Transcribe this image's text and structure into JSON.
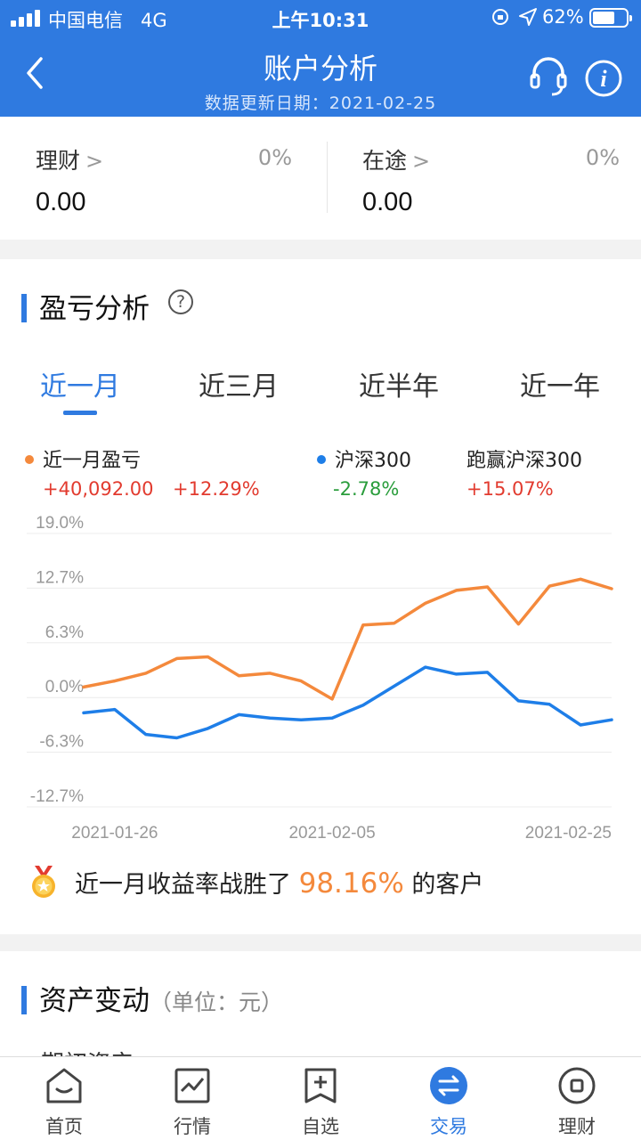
{
  "status_bar": {
    "carrier": "中国电信",
    "network": "4G",
    "time": "上午10:31",
    "battery": "62%"
  },
  "header": {
    "title": "账户分析",
    "subtitle": "数据更新日期：2021-02-25"
  },
  "accounts": [
    {
      "name": "理财",
      "percent": "0%",
      "value": "0.00"
    },
    {
      "name": "在途",
      "percent": "0%",
      "value": "0.00"
    }
  ],
  "pl_section": {
    "title": "盈亏分析",
    "tabs": [
      "近一月",
      "近三月",
      "近半年",
      "近一年"
    ],
    "active_tab": 0,
    "legend": {
      "series_a": {
        "label": "近一月盈亏",
        "amount": "+40,092.00",
        "percent": "+12.29%",
        "color": "#f4893c"
      },
      "series_b": {
        "label": "沪深300",
        "percent": "-2.78%",
        "color": "#1e7ee8"
      },
      "beat": {
        "label": "跑赢沪深300",
        "percent": "+15.07%"
      }
    },
    "beat_text": {
      "prefix": "近一月收益率战胜了",
      "value": "98.16%",
      "suffix": "的客户"
    }
  },
  "chart_data": {
    "type": "line",
    "y_ticks": [
      "19.0%",
      "12.7%",
      "6.3%",
      "0.0%",
      "-6.3%",
      "-12.7%"
    ],
    "ylim": [
      -12.7,
      19.0
    ],
    "x_tick_labels": [
      "2021-01-26",
      "2021-02-05",
      "2021-02-25"
    ],
    "x_tick_index": [
      1,
      8,
      17
    ],
    "series": [
      {
        "name": "近一月盈亏",
        "color": "#f4893c",
        "values": [
          1.2,
          1.9,
          2.8,
          4.5,
          4.7,
          2.5,
          2.8,
          1.9,
          -0.2,
          8.4,
          8.6,
          10.9,
          12.4,
          12.8,
          8.5,
          12.9,
          13.7,
          12.6
        ]
      },
      {
        "name": "沪深300",
        "color": "#1e7ee8",
        "values": [
          -1.8,
          -1.4,
          -4.3,
          -4.7,
          -3.6,
          -2.0,
          -2.4,
          -2.6,
          -2.4,
          -0.9,
          1.3,
          3.5,
          2.7,
          2.9,
          -0.4,
          -0.8,
          -3.2,
          -2.6
        ]
      }
    ]
  },
  "asset_section": {
    "title": "资产变动",
    "unit": "（单位：元）",
    "cut_label": "期初资产"
  },
  "tabbar": [
    {
      "label": "首页"
    },
    {
      "label": "行情"
    },
    {
      "label": "自选"
    },
    {
      "label": "交易"
    },
    {
      "label": "理财"
    }
  ]
}
